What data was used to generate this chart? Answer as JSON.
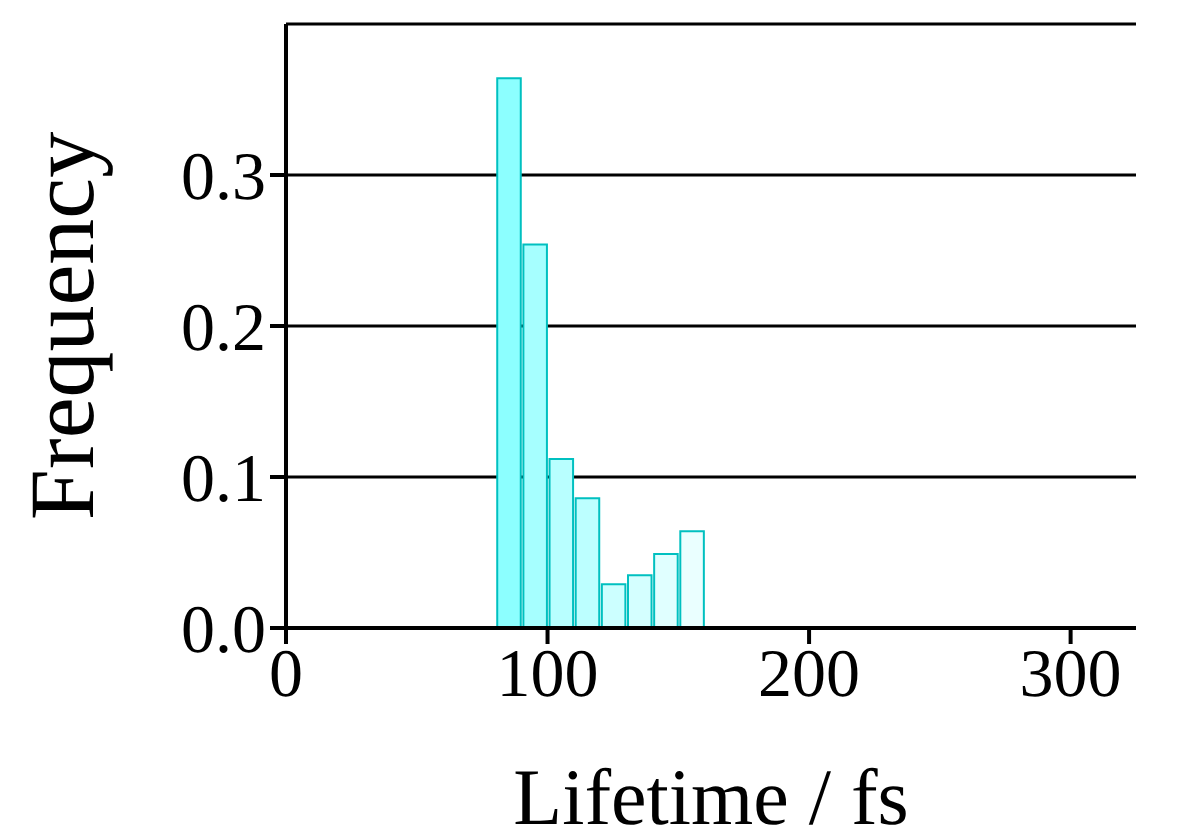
{
  "chart_data": {
    "type": "histogram",
    "xlabel": "Lifetime / fs",
    "ylabel": "Frequency",
    "bins": [
      0,
      10,
      20,
      30,
      40,
      50,
      60,
      70,
      80,
      90,
      100,
      110,
      120,
      130,
      140,
      150,
      160,
      170,
      180,
      190,
      200,
      210,
      220,
      230,
      240,
      250,
      260,
      270,
      280,
      290,
      300,
      310,
      320
    ],
    "values": [
      0,
      0,
      0,
      0,
      0,
      0,
      0,
      0,
      0.364,
      0.254,
      0.112,
      0.086,
      0.029,
      0.035,
      0.049,
      0.064,
      0,
      0,
      0,
      0,
      0,
      0,
      0,
      0,
      0,
      0,
      0,
      0,
      0,
      0,
      0,
      0
    ],
    "colors": [
      "#80ffff",
      "#80ffff",
      "#80ffff",
      "#80ffff",
      "#80ffff",
      "#80ffff",
      "#80ffff",
      "#80ffff",
      "#8cffff",
      "#a6ffff",
      "#b8ffff",
      "#bcffff",
      "#ccffff",
      "#d4ffff",
      "#e0ffff",
      "#eaffff",
      "#80ffff",
      "#80ffff",
      "#80ffff",
      "#80ffff",
      "#80ffff",
      "#80ffff",
      "#80ffff",
      "#80ffff",
      "#80ffff",
      "#80ffff",
      "#80ffff",
      "#80ffff",
      "#80ffff",
      "#80ffff",
      "#80ffff",
      "#80ffff"
    ],
    "xlim": [
      0,
      325
    ],
    "xticks": [
      0,
      100,
      200,
      300
    ],
    "ylim": [
      0,
      0.4
    ],
    "yticks": [
      {
        "value": 0,
        "label": "0.0"
      },
      {
        "value": 0.1,
        "label": "0.1"
      },
      {
        "value": 0.2,
        "label": "0.2"
      },
      {
        "value": 0.3,
        "label": "0.3"
      }
    ],
    "grid": "y"
  }
}
